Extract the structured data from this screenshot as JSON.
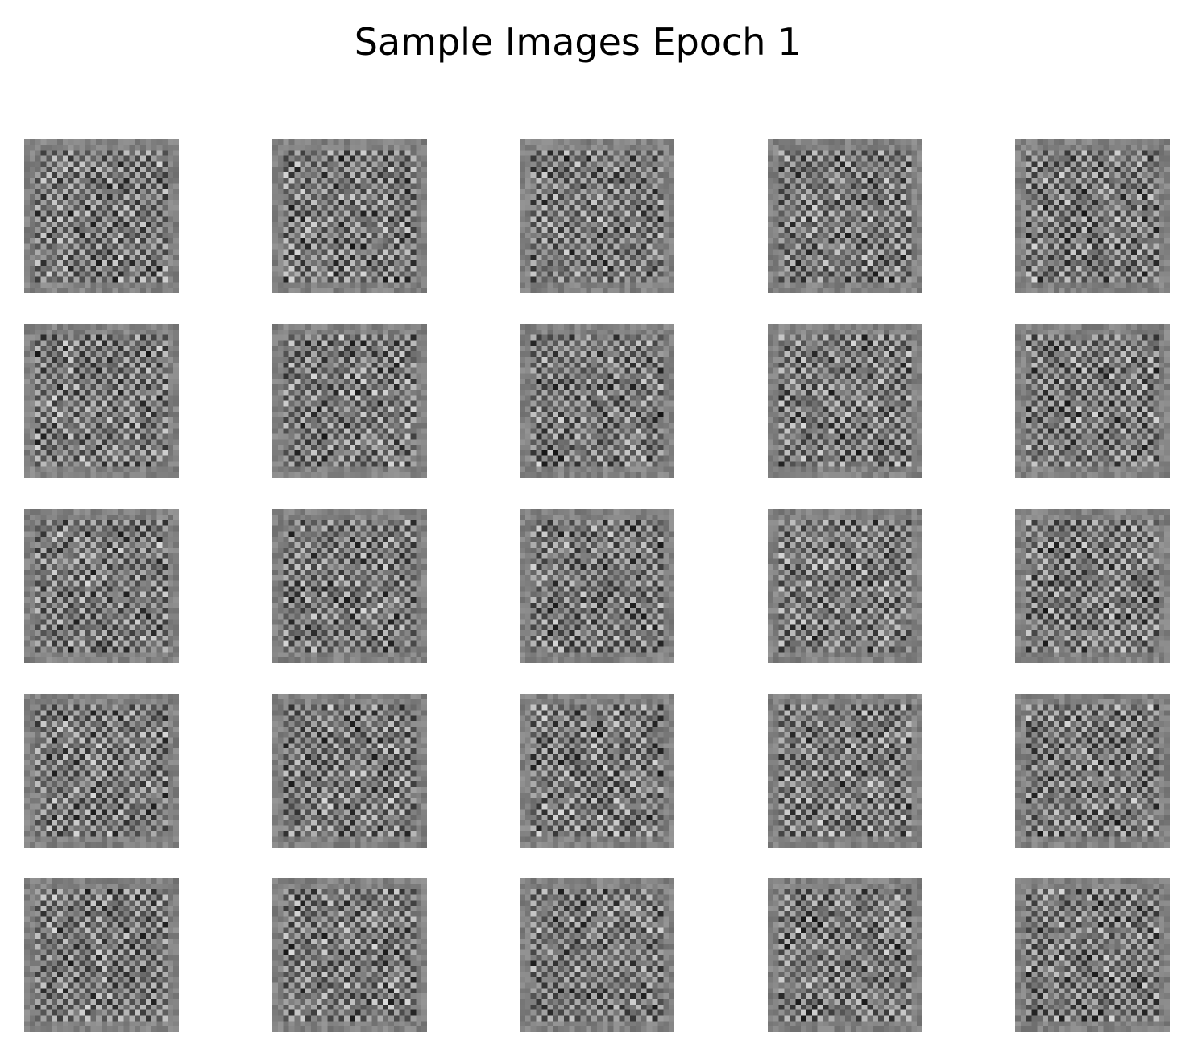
{
  "figure": {
    "title": "Sample Images Epoch 1"
  },
  "grid": {
    "rows": 5,
    "cols": 5,
    "image_resolution": 28,
    "colormap": "gray"
  }
}
